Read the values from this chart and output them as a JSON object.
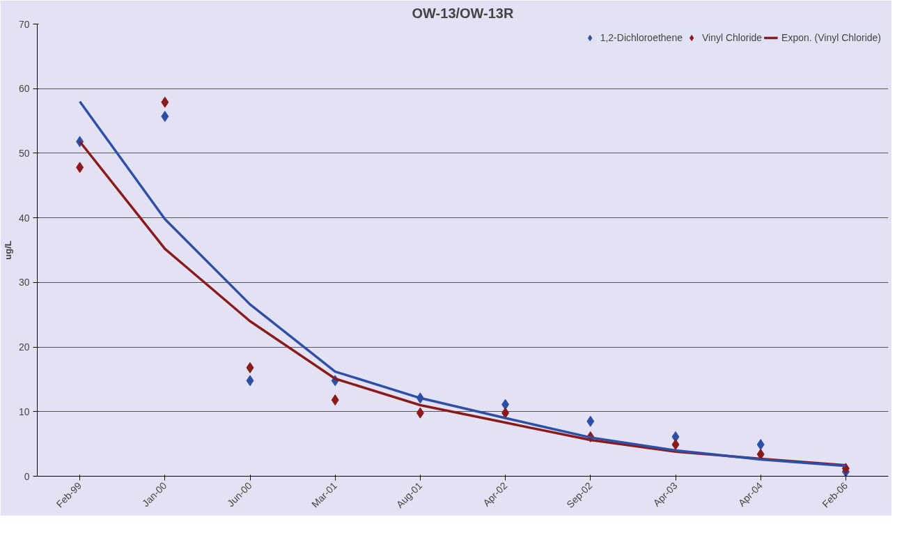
{
  "chart_data": {
    "type": "scatter",
    "title": "OW-13/OW-13R",
    "ylabel": "ug/L",
    "categories": [
      "Feb-99",
      "Jan-00",
      "Jun-00",
      "Mar-01",
      "Aug-01",
      "Apr-02",
      "Sep-02",
      "Apr-03",
      "Apr-04",
      "Feb-06"
    ],
    "series": [
      {
        "name": "1,2-Dichloroethene",
        "color": "#2e4fa8",
        "values": [
          51.8,
          55.7,
          14.8,
          14.8,
          12.1,
          11.1,
          8.5,
          6.1,
          4.9,
          0.7
        ]
      },
      {
        "name": "Vinyl Chloride",
        "color": "#8b1a1a",
        "values": [
          47.8,
          57.9,
          16.8,
          11.8,
          9.8,
          9.8,
          6.1,
          4.9,
          3.4,
          1.2
        ]
      },
      {
        "name": "Expon. (Vinyl Chloride)",
        "type": "line",
        "marker": "none",
        "color": "#8b1a1a",
        "values": [
          51.8,
          35.2,
          24,
          15.1,
          11,
          8.3,
          5.6,
          3.8,
          2.7,
          1.7
        ]
      },
      {
        "type": "line",
        "marker": "none",
        "color": "#2e4fa8",
        "values": [
          58,
          39.8,
          26.6,
          16.2,
          12.1,
          9,
          6,
          4,
          2.6,
          1.6
        ]
      }
    ],
    "ylim": [
      0,
      70
    ],
    "yticks": [
      0,
      10,
      20,
      30,
      40,
      50,
      60,
      70
    ],
    "grid": "y",
    "legend": "top right",
    "marker": "diamond",
    "line_style": "solid"
  }
}
